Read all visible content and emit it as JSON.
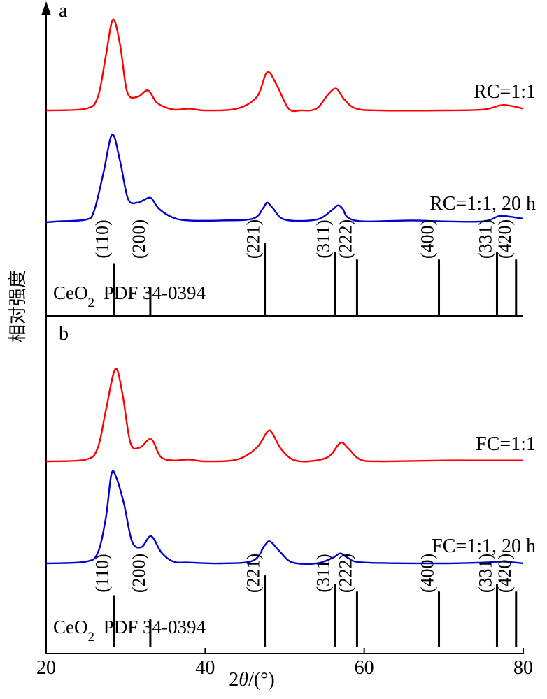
{
  "chart_data": {
    "type": "line",
    "xlabel": "2θ/(°)",
    "ylabel": "相对强度",
    "xlim": [
      20,
      80
    ],
    "xticks": [
      20,
      40,
      60,
      80
    ],
    "grid": false,
    "panels": [
      {
        "label": "a",
        "series": [
          {
            "name": "RC=1:1",
            "color": "#ff0000",
            "x": [
              20,
              25,
              26.5,
              27.5,
              28.4,
              29.3,
              30.2,
              31.5,
              32.8,
              34,
              36,
              38,
              40,
              44,
              46.5,
              47.8,
              49,
              50.5,
              52,
              54,
              55.5,
              56.5,
              57.5,
              59,
              62,
              70,
              75,
              77.5,
              80
            ],
            "values": [
              0,
              0.02,
              0.15,
              0.6,
              1.0,
              0.72,
              0.2,
              0.15,
              0.22,
              0.08,
              0.01,
              0.02,
              0,
              0.02,
              0.15,
              0.42,
              0.28,
              0.02,
              0,
              0.02,
              0.18,
              0.24,
              0.12,
              0.02,
              0,
              0,
              0.01,
              0.06,
              0.02
            ]
          },
          {
            "name": "RC=1:1, 20 h",
            "color": "#0000cc",
            "x": [
              20,
              21.5,
              25,
              26,
              27.2,
              28.3,
              29.3,
              30.3,
              31.5,
              32.3,
              33.2,
              34.2,
              36,
              38,
              42,
              46,
              47.3,
              47.8,
              48.5,
              50,
              54,
              56,
              56.7,
              57.3,
              58,
              60,
              66,
              70,
              75,
              77,
              78.5,
              80
            ],
            "values": [
              0,
              0.01,
              0.03,
              0.12,
              0.55,
              0.98,
              0.68,
              0.26,
              0.22,
              0.25,
              0.27,
              0.15,
              0.05,
              0.02,
              0.02,
              0.04,
              0.16,
              0.22,
              0.16,
              0.03,
              0.03,
              0.14,
              0.19,
              0.15,
              0.05,
              0.01,
              0.02,
              0.01,
              0.01,
              0.07,
              0.06,
              0.04
            ]
          }
        ],
        "reference": {
          "label": "CeO₂ PDF 34-0394",
          "peaks": [
            {
              "hkl": "(110)",
              "x": 28.5,
              "intensity": 0.7
            },
            {
              "hkl": "(200)",
              "x": 33.1,
              "intensity": 0.37
            },
            {
              "hkl": "(221)",
              "x": 47.5,
              "intensity": 0.97
            },
            {
              "hkl": "(311)",
              "x": 56.3,
              "intensity": 0.85
            },
            {
              "hkl": "(222)",
              "x": 59.1,
              "intensity": 0.75
            },
            {
              "hkl": "(400)",
              "x": 69.4,
              "intensity": 0.75
            },
            {
              "hkl": "(331)",
              "x": 76.7,
              "intensity": 0.85
            },
            {
              "hkl": "(420)",
              "x": 79.1,
              "intensity": 0.75
            }
          ]
        }
      },
      {
        "label": "b",
        "series": [
          {
            "name": "FC=1:1",
            "color": "#ff0000",
            "x": [
              20,
              25,
              26.5,
              27.5,
              28.7,
              29.6,
              30.6,
              31.8,
              33.2,
              34.4,
              36,
              38,
              40,
              44,
              46.5,
              47.8,
              48.4,
              49.5,
              51,
              53,
              55.5,
              57,
              58,
              59.5,
              62,
              70,
              75,
              80
            ],
            "values": [
              0,
              0.02,
              0.15,
              0.55,
              1.0,
              0.73,
              0.2,
              0.15,
              0.24,
              0.05,
              0.01,
              0.02,
              0,
              0.02,
              0.15,
              0.32,
              0.31,
              0.14,
              0.02,
              0,
              0.05,
              0.2,
              0.14,
              0.02,
              0,
              0.01,
              0.01,
              0.01
            ]
          },
          {
            "name": "FC=1:1, 20 h",
            "color": "#0000cc",
            "x": [
              20,
              25,
              26.5,
              27.5,
              28.2,
              28.8,
              29.8,
              30.8,
              32,
              33.2,
              34.5,
              36,
              38,
              42,
              46,
              47.5,
              48.2,
              49.5,
              51,
              54,
              56,
              57,
              58,
              60,
              70,
              75,
              77.5,
              80
            ],
            "values": [
              0,
              0.02,
              0.12,
              0.5,
              0.98,
              0.95,
              0.65,
              0.24,
              0.18,
              0.3,
              0.12,
              0.02,
              0.01,
              0,
              0.03,
              0.2,
              0.24,
              0.12,
              0.01,
              0,
              0.06,
              0.11,
              0.06,
              0.01,
              0,
              0.01,
              0.02,
              0
            ]
          }
        ],
        "reference": {
          "label": "CeO₂ PDF 34-0394",
          "peaks": [
            {
              "hkl": "(110)",
              "x": 28.5,
              "intensity": 0.7
            },
            {
              "hkl": "(200)",
              "x": 33.1,
              "intensity": 0.37
            },
            {
              "hkl": "(221)",
              "x": 47.5,
              "intensity": 0.97
            },
            {
              "hkl": "(311)",
              "x": 56.3,
              "intensity": 0.85
            },
            {
              "hkl": "(222)",
              "x": 59.1,
              "intensity": 0.75
            },
            {
              "hkl": "(400)",
              "x": 69.4,
              "intensity": 0.75
            },
            {
              "hkl": "(331)",
              "x": 76.7,
              "intensity": 0.85
            },
            {
              "hkl": "(420)",
              "x": 79.1,
              "intensity": 0.75
            }
          ]
        }
      }
    ]
  }
}
